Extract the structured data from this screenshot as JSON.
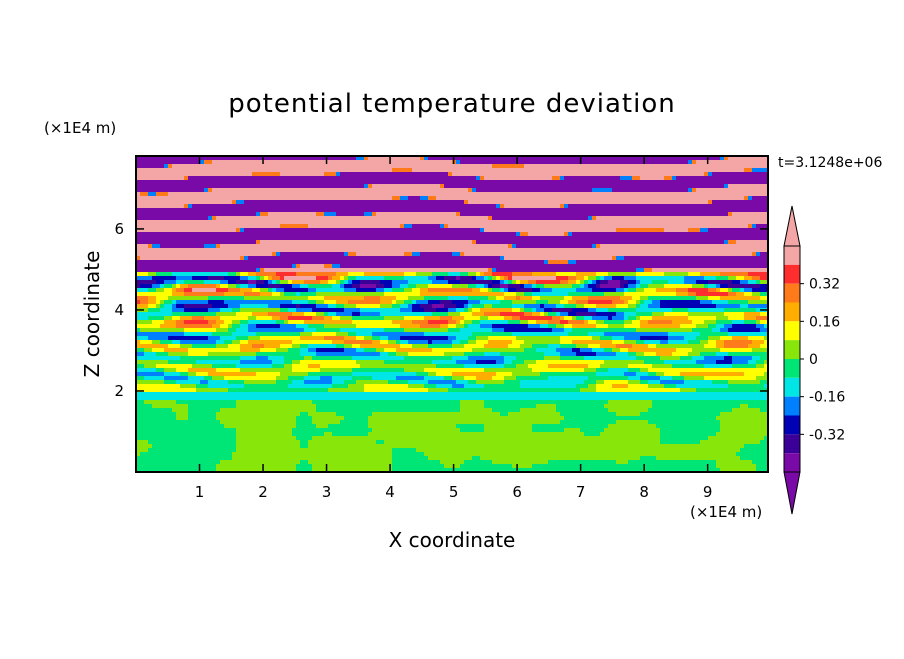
{
  "chart_data": {
    "type": "heatmap",
    "title": "potential temperature deviation",
    "time_label": "t=3.1248e+06",
    "xlabel": "X coordinate",
    "ylabel": "Z coordinate",
    "x_unit": "(×1E4 m)",
    "y_unit": "(×1E4 m)",
    "xlim": [
      0,
      9.95
    ],
    "ylim": [
      0,
      7.8
    ],
    "x_ticks": [
      1,
      2,
      3,
      4,
      5,
      6,
      7,
      8,
      9
    ],
    "y_ticks": [
      2,
      4,
      6
    ],
    "grid": false,
    "colorbar": {
      "ticks": [
        {
          "value": 0.32,
          "label": "0.32"
        },
        {
          "value": 0.16,
          "label": "0.16"
        },
        {
          "value": 0,
          "label": "0"
        },
        {
          "value": -0.16,
          "label": "-0.16"
        },
        {
          "value": -0.32,
          "label": "-0.32"
        }
      ],
      "levels": [
        {
          "from": 0.4,
          "to": 0.48,
          "color": "#f4a6a6"
        },
        {
          "from": 0.32,
          "to": 0.4,
          "color": "#ff2e2e"
        },
        {
          "from": 0.24,
          "to": 0.32,
          "color": "#ff7a1a"
        },
        {
          "from": 0.16,
          "to": 0.24,
          "color": "#ffad00"
        },
        {
          "from": 0.08,
          "to": 0.16,
          "color": "#ffff00"
        },
        {
          "from": 0.0,
          "to": 0.08,
          "color": "#88e60a"
        },
        {
          "from": -0.08,
          "to": 0.0,
          "color": "#00e676"
        },
        {
          "from": -0.16,
          "to": -0.08,
          "color": "#00e5e5"
        },
        {
          "from": -0.24,
          "to": -0.16,
          "color": "#0080ff"
        },
        {
          "from": -0.32,
          "to": -0.24,
          "color": "#0000b4"
        },
        {
          "from": -0.4,
          "to": -0.32,
          "color": "#3a0098"
        },
        {
          "from": -0.48,
          "to": -0.4,
          "color": "#7a0aa8"
        }
      ],
      "overflow_high_color": "#f4a6a6",
      "overflow_low_color": "#7a0aa8"
    },
    "layers": [
      {
        "z_from": 0,
        "z_to": 1.75,
        "pattern": "mixed",
        "base": -0.04,
        "patch": 0.04
      },
      {
        "z_from": 1.75,
        "z_to": 1.95,
        "pattern": "band",
        "value": -0.12
      },
      {
        "z_from": 1.95,
        "z_to": 4.9,
        "pattern": "turbulent"
      },
      {
        "z_from": 4.9,
        "z_to": 7.8,
        "pattern": "stripes",
        "high": 0.44,
        "low": -0.44
      }
    ]
  }
}
